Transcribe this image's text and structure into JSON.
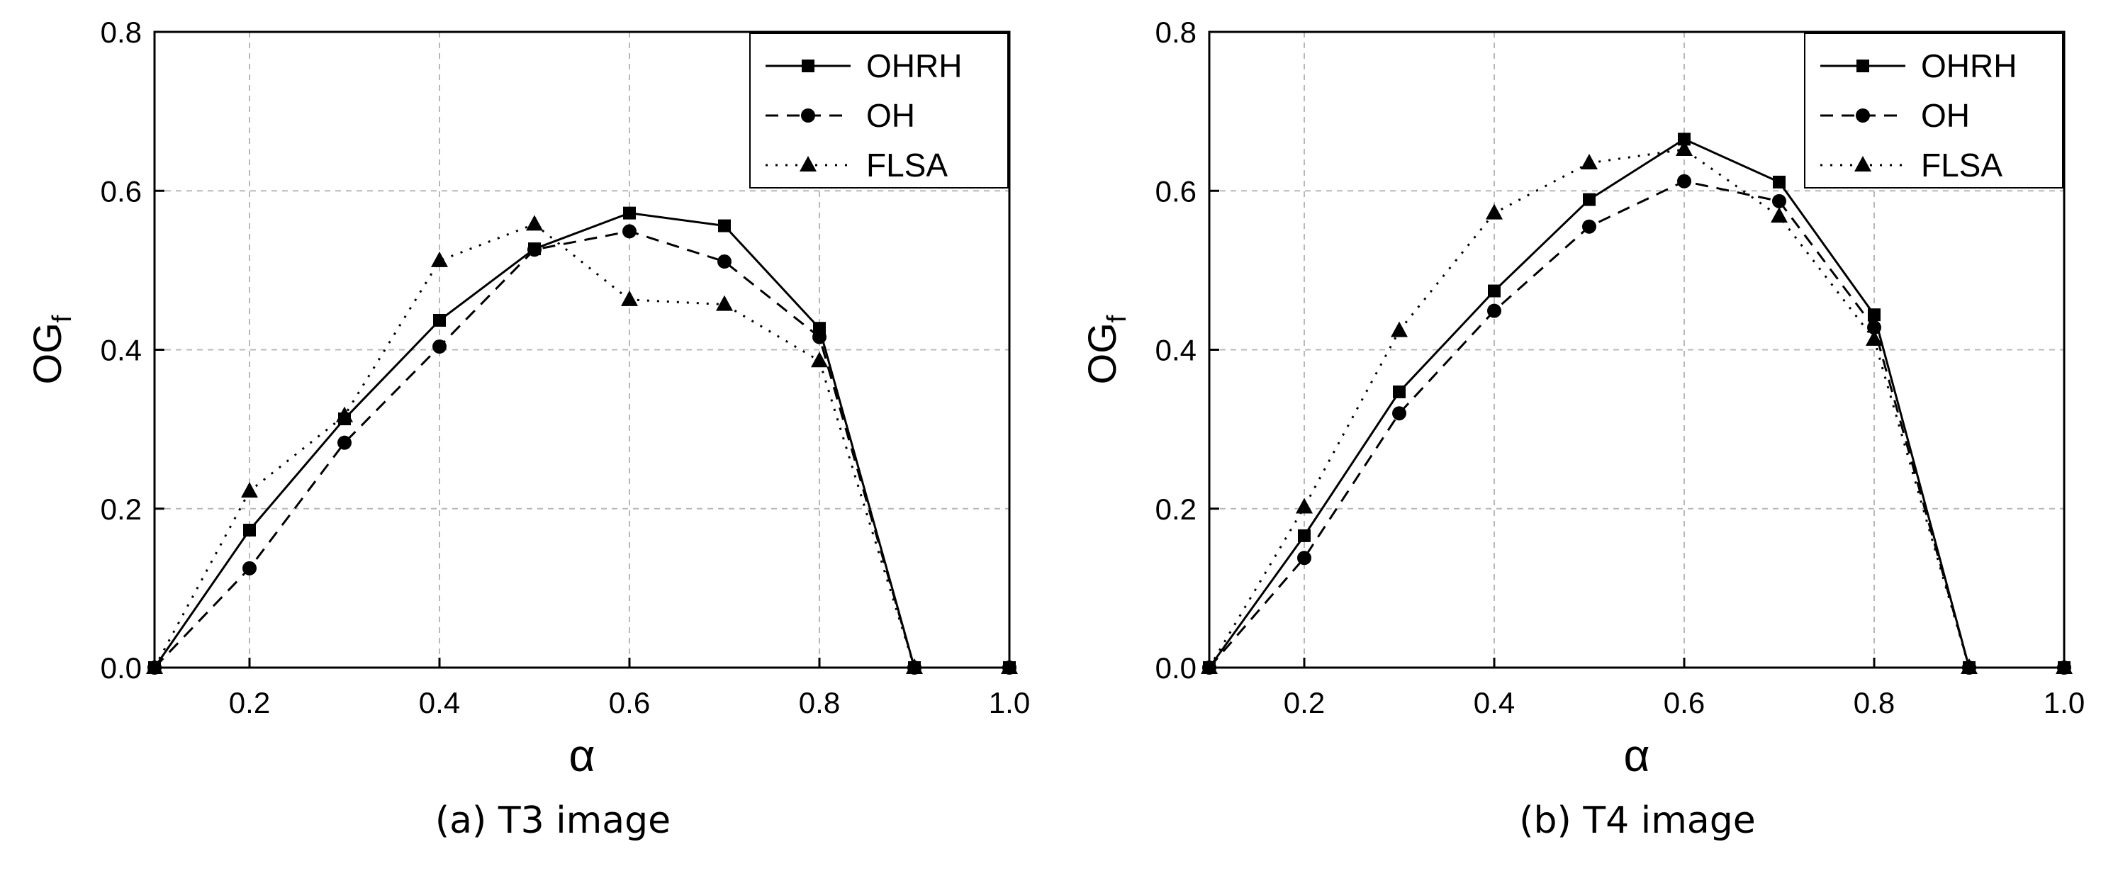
{
  "charts": [
    {
      "id": "a",
      "caption": "(a) T3 image",
      "chart_data": {
        "type": "line",
        "title": "",
        "xlabel": "α",
        "ylabel_main": "OG",
        "ylabel_sub": "f",
        "xlim": [
          0.1,
          1.0
        ],
        "ylim": [
          0.0,
          0.8
        ],
        "xticks": [
          0.2,
          0.4,
          0.6,
          0.8,
          1.0
        ],
        "xtick_labels": [
          "0.2",
          "0.4",
          "0.6",
          "0.8",
          "1.0"
        ],
        "yticks": [
          0.0,
          0.2,
          0.4,
          0.6,
          0.8
        ],
        "ytick_labels": [
          "0.0",
          "0.2",
          "0.4",
          "0.6",
          "0.8"
        ],
        "x": [
          0.1,
          0.2,
          0.3,
          0.4,
          0.5,
          0.6,
          0.7,
          0.8,
          0.9,
          1.0
        ],
        "grid": true,
        "legend_position": "top-right",
        "series": [
          {
            "name": "OHRH",
            "style": "solid",
            "marker": "square",
            "values": [
              0.0,
              0.173,
              0.313,
              0.437,
              0.527,
              0.572,
              0.556,
              0.427,
              0.0,
              0.0
            ]
          },
          {
            "name": "OH",
            "style": "dashed",
            "marker": "circle",
            "values": [
              0.0,
              0.125,
              0.283,
              0.404,
              0.526,
              0.549,
              0.511,
              0.416,
              0.0,
              0.0
            ]
          },
          {
            "name": "FLSA",
            "style": "dotted",
            "marker": "triangle",
            "values": [
              0.0,
              0.222,
              0.317,
              0.512,
              0.558,
              0.463,
              0.457,
              0.386,
              0.0,
              0.0
            ]
          }
        ]
      }
    },
    {
      "id": "b",
      "caption": "(b) T4 image",
      "chart_data": {
        "type": "line",
        "title": "",
        "xlabel": "α",
        "ylabel_main": "OG",
        "ylabel_sub": "f",
        "xlim": [
          0.1,
          1.0
        ],
        "ylim": [
          0.0,
          0.8
        ],
        "xticks": [
          0.2,
          0.4,
          0.6,
          0.8,
          1.0
        ],
        "xtick_labels": [
          "0.2",
          "0.4",
          "0.6",
          "0.8",
          "1.0"
        ],
        "yticks": [
          0.0,
          0.2,
          0.4,
          0.6,
          0.8
        ],
        "ytick_labels": [
          "0.0",
          "0.2",
          "0.4",
          "0.6",
          "0.8"
        ],
        "x": [
          0.1,
          0.2,
          0.3,
          0.4,
          0.5,
          0.6,
          0.7,
          0.8,
          0.9,
          1.0
        ],
        "grid": true,
        "legend_position": "top-right",
        "series": [
          {
            "name": "OHRH",
            "style": "solid",
            "marker": "square",
            "values": [
              0.0,
              0.166,
              0.347,
              0.474,
              0.589,
              0.665,
              0.611,
              0.444,
              0.0,
              0.0
            ]
          },
          {
            "name": "OH",
            "style": "dashed",
            "marker": "circle",
            "values": [
              0.0,
              0.138,
              0.32,
              0.449,
              0.555,
              0.612,
              0.587,
              0.428,
              0.0,
              0.0
            ]
          },
          {
            "name": "FLSA",
            "style": "dotted",
            "marker": "triangle",
            "values": [
              0.0,
              0.202,
              0.424,
              0.572,
              0.635,
              0.652,
              0.568,
              0.413,
              0.0,
              0.0
            ]
          }
        ]
      }
    }
  ]
}
